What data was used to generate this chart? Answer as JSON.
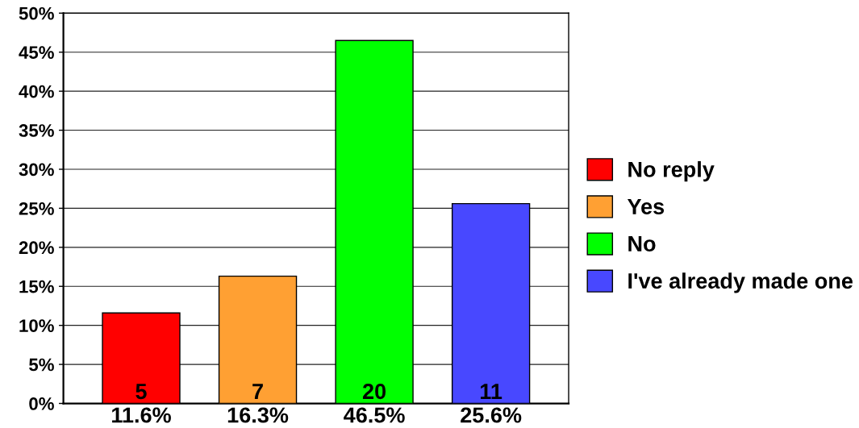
{
  "chart_data": {
    "type": "bar",
    "categories": [
      "11.6%",
      "16.3%",
      "46.5%",
      "25.6%"
    ],
    "stacked": true,
    "series": [
      {
        "name": "No reply",
        "color": "#ff0000",
        "values": [
          11.6,
          null,
          null,
          null
        ]
      },
      {
        "name": "Yes",
        "color": "#ffa033",
        "values": [
          null,
          16.3,
          null,
          null
        ]
      },
      {
        "name": "No",
        "color": "#00ff00",
        "values": [
          null,
          null,
          46.5,
          null
        ]
      },
      {
        "name": "I've already made one",
        "color": "#4848ff",
        "values": [
          null,
          null,
          null,
          25.6
        ]
      }
    ],
    "annotations": [
      {
        "text": "5",
        "x": "11.6%",
        "y": 0
      },
      {
        "text": "7",
        "x": "16.3%",
        "y": 0
      },
      {
        "text": "20",
        "x": "46.5%",
        "y": 0
      },
      {
        "text": "11",
        "x": "25.6%",
        "y": 0
      }
    ],
    "ylim": [
      0,
      50
    ],
    "yticks": [
      {
        "value": 0,
        "label": "0%"
      },
      {
        "value": 5,
        "label": "5%"
      },
      {
        "value": 10,
        "label": "10%"
      },
      {
        "value": 15,
        "label": "15%"
      },
      {
        "value": 20,
        "label": "20%"
      },
      {
        "value": 25,
        "label": "25%"
      },
      {
        "value": 30,
        "label": "30%"
      },
      {
        "value": 35,
        "label": "35%"
      },
      {
        "value": 40,
        "label": "40%"
      },
      {
        "value": 45,
        "label": "45%"
      },
      {
        "value": 50,
        "label": "50%"
      }
    ],
    "grid": "y",
    "legend": "right"
  }
}
